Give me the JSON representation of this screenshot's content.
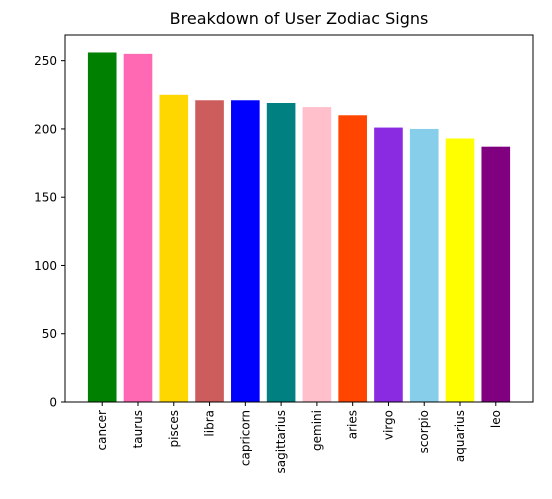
{
  "chart_data": {
    "type": "bar",
    "title": "Breakdown of User Zodiac Signs",
    "xlabel": "",
    "ylabel": "",
    "categories": [
      "cancer",
      "taurus",
      "pisces",
      "libra",
      "capricorn",
      "sagittarius",
      "gemini",
      "aries",
      "virgo",
      "scorpio",
      "aquarius",
      "leo"
    ],
    "values": [
      256,
      255,
      225,
      221,
      221,
      219,
      216,
      210,
      201,
      200,
      193,
      187
    ],
    "colors": [
      "#008000",
      "#ff69b4",
      "#ffd700",
      "#cd5c5c",
      "#0000ff",
      "#008080",
      "#ffc0cb",
      "#ff4500",
      "#8a2be2",
      "#87ceeb",
      "#ffff00",
      "#800080"
    ],
    "ylim": [
      0,
      268.8
    ],
    "yticks": [
      0,
      50,
      100,
      150,
      200,
      250
    ],
    "grid": false,
    "legend": "none"
  }
}
